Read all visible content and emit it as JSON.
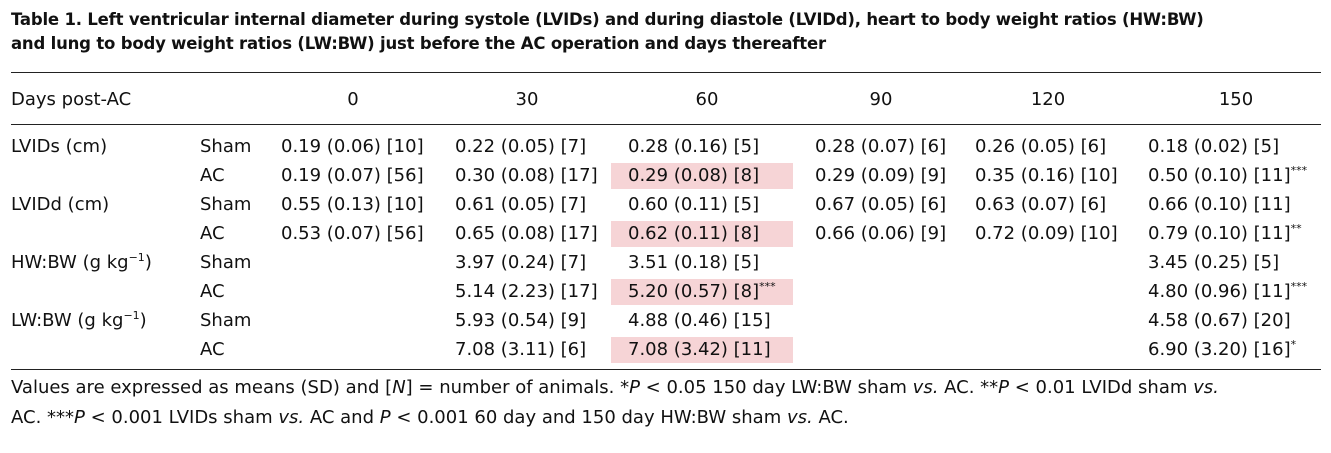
{
  "caption": {
    "line1": "Table 1.  Left ventricular internal diameter during systole (LVIDs) and during diastole (LVIDd), heart to body weight ratios (HW:BW)",
    "line2": "and lung to body weight ratios (LW:BW) just before the AC operation and days thereafter"
  },
  "header": {
    "label": "Days post-AC",
    "days": [
      "0",
      "30",
      "60",
      "90",
      "120",
      "150"
    ]
  },
  "rows": [
    {
      "measure": "LVIDs (cm)",
      "measure_sup": "",
      "group": "Sham",
      "values": [
        "0.19 (0.06) [10]",
        "0.22 (0.05) [7]",
        "0.28 (0.16) [5]",
        "0.28 (0.07) [6]",
        "0.26 (0.05) [6]",
        "0.18 (0.02) [5]"
      ],
      "marks": [
        "",
        "",
        "",
        "",
        "",
        ""
      ]
    },
    {
      "measure": "",
      "measure_sup": "",
      "group": "AC",
      "values": [
        "0.19 (0.07) [56]",
        "0.30 (0.08) [17]",
        "0.29 (0.08) [8]",
        "0.29 (0.09) [9]",
        "0.35 (0.16) [10]",
        "0.50 (0.10) [11]"
      ],
      "marks": [
        "",
        "",
        "",
        "",
        "",
        "***"
      ]
    },
    {
      "measure": "LVIDd (cm)",
      "measure_sup": "",
      "group": "Sham",
      "values": [
        "0.55 (0.13) [10]",
        "0.61 (0.05) [7]",
        "0.60 (0.11) [5]",
        "0.67 (0.05) [6]",
        "0.63 (0.07) [6]",
        "0.66 (0.10) [11]"
      ],
      "marks": [
        "",
        "",
        "",
        "",
        "",
        ""
      ]
    },
    {
      "measure": "",
      "measure_sup": "",
      "group": "AC",
      "values": [
        "0.53 (0.07) [56]",
        "0.65 (0.08) [17]",
        "0.62 (0.11) [8]",
        "0.66 (0.06) [9]",
        "0.72 (0.09) [10]",
        "0.79 (0.10) [11]"
      ],
      "marks": [
        "",
        "",
        "",
        "",
        "",
        "**"
      ]
    },
    {
      "measure": "HW:BW (g kg",
      "measure_sup": "−1",
      "measure_close": ")",
      "group": "Sham",
      "values": [
        "",
        "3.97 (0.24) [7]",
        "3.51 (0.18) [5]",
        "",
        "",
        "3.45 (0.25) [5]"
      ],
      "marks": [
        "",
        "",
        "",
        "",
        "",
        ""
      ]
    },
    {
      "measure": "",
      "measure_sup": "",
      "group": "AC",
      "values": [
        "",
        "5.14 (2.23) [17]",
        "5.20 (0.57) [8]",
        "",
        "",
        "4.80 (0.96) [11]"
      ],
      "marks": [
        "",
        "",
        "***",
        "",
        "",
        "***"
      ]
    },
    {
      "measure": "LW:BW (g kg",
      "measure_sup": "−1",
      "measure_close": ")",
      "group": "Sham",
      "values": [
        "",
        "5.93 (0.54) [9]",
        "4.88 (0.46) [15]",
        "",
        "",
        "4.58 (0.67) [20]"
      ],
      "marks": [
        "",
        "",
        "",
        "",
        "",
        ""
      ]
    },
    {
      "measure": "",
      "measure_sup": "",
      "group": "AC",
      "values": [
        "",
        "7.08 (3.11) [6]",
        "7.08 (3.42) [11]",
        "",
        "",
        "6.90 (3.20) [16]"
      ],
      "marks": [
        "",
        "",
        "",
        "",
        "",
        "*"
      ]
    }
  ],
  "highlight_color": "#f6d4d6",
  "footnote": {
    "a": "Values are expressed as means (SD) and [",
    "a_n": "N",
    "b": "] = number of animals. *",
    "p1": "P",
    "c": " < 0.05 150 day LW:BW sham ",
    "vs1": "vs.",
    "d": " AC. **",
    "p2": "P",
    "e": " < 0.01 LVIDd sham ",
    "vs2": "vs.",
    "f": "AC. ***",
    "p3": "P",
    "g": " < 0.001 LVIDs sham ",
    "vs3": "vs.",
    "h": " AC and ",
    "p4": "P",
    "i": " < 0.001 60 day and 150 day HW:BW sham ",
    "vs4": "vs.",
    "j": " AC."
  }
}
